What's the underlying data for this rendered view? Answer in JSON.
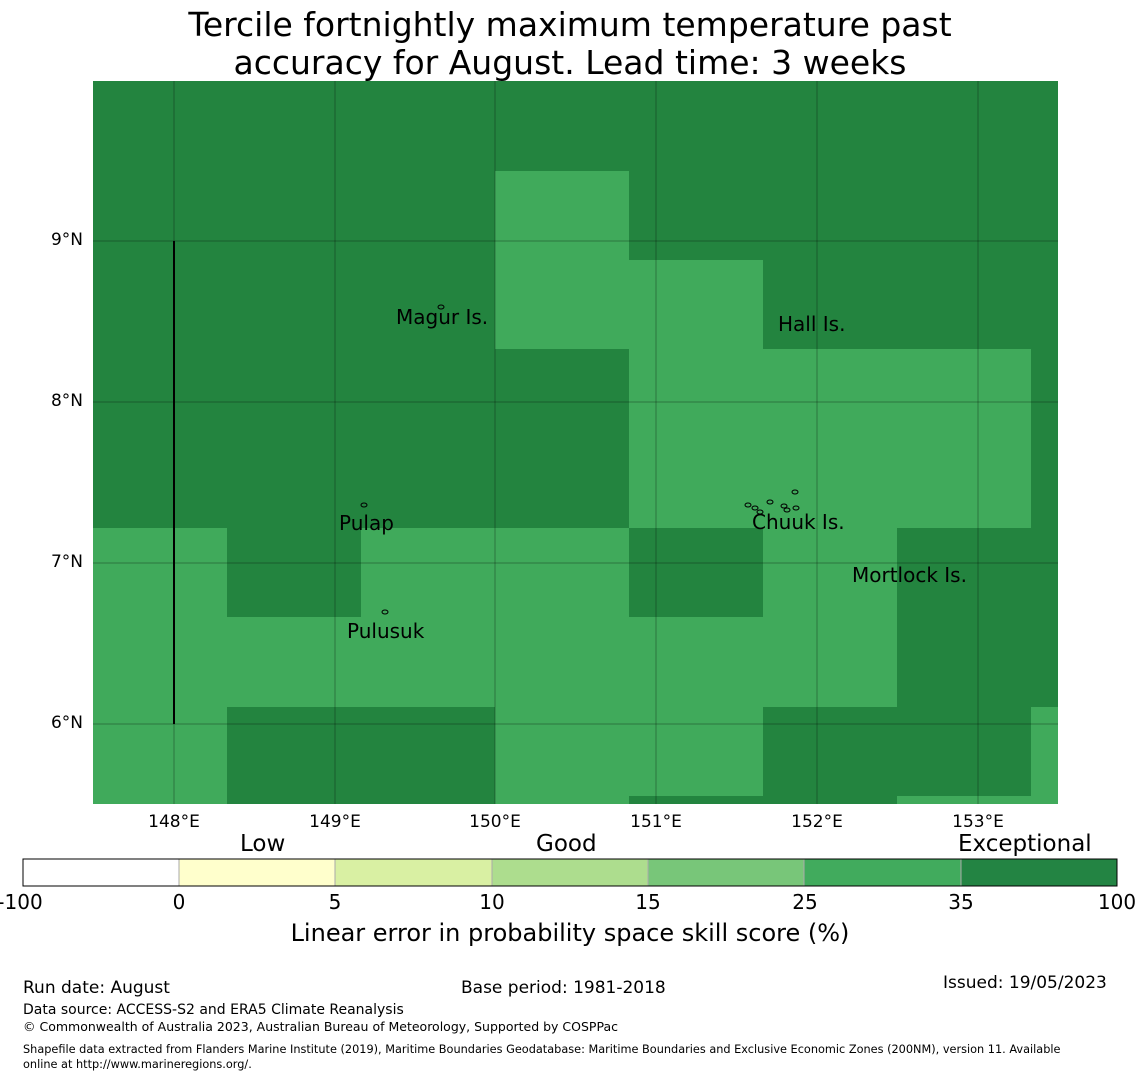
{
  "title_lines": [
    "Tercile fortnightly maximum temperature past",
    "accuracy for August. Lead time: 3 weeks"
  ],
  "map": {
    "lat_ticks": [
      "9°N",
      "8°N",
      "7°N",
      "6°N"
    ],
    "lon_ticks": [
      "148°E",
      "149°E",
      "150°E",
      "151°E",
      "152°E",
      "153°E"
    ],
    "places": [
      "Magur Is.",
      "Hall Is.",
      "Pulap",
      "Chuuk Is.",
      "Mortlock Is.",
      "Pulusuk"
    ],
    "colors": {
      "exceptional": "#23843f",
      "band_25_35": "#40aa5b",
      "grid": "#000000"
    },
    "skill_grid": {
      "description_legend": "cell values as colorbar band: 25-35 or 35-100",
      "columns_lon_edges": [
        147.5,
        148.33,
        149.17,
        150.0,
        150.83,
        151.67,
        152.5,
        153.33,
        153.5
      ],
      "rows_lat_edges": [
        10.0,
        9.44,
        8.89,
        8.33,
        7.78,
        7.22,
        6.67,
        6.11,
        5.56,
        5.5
      ]
    }
  },
  "colorbar": {
    "categories": [
      "Low",
      "Good",
      "Exceptional"
    ],
    "ticks": [
      "-100",
      "0",
      "5",
      "10",
      "15",
      "25",
      "35",
      "100"
    ],
    "colors": [
      "#ffffff",
      "#ffffcc",
      "#d9f0a3",
      "#addd8e",
      "#78c679",
      "#41ab5d",
      "#238443"
    ],
    "label": "Linear error in probability space skill score (%)"
  },
  "footer": {
    "run_date": "Run date: August",
    "base_period": "Base period: 1981-2018",
    "issued": "Issued: 19/05/2023",
    "data_source": "Data source: ACCESS-S2 and ERA5 Climate Reanalysis",
    "copyright": "© Commonwealth of Australia 2023, Australian Bureau of Meteorology, Supported by COSPPac",
    "shapefile_line1": "Shapefile data extracted from Flanders Marine Institute (2019), Maritime Boundaries Geodatabase: Maritime Boundaries and Exclusive Economic Zones (200NM), version 11. Available",
    "shapefile_line2": "online at http://www.marineregions.org/."
  }
}
